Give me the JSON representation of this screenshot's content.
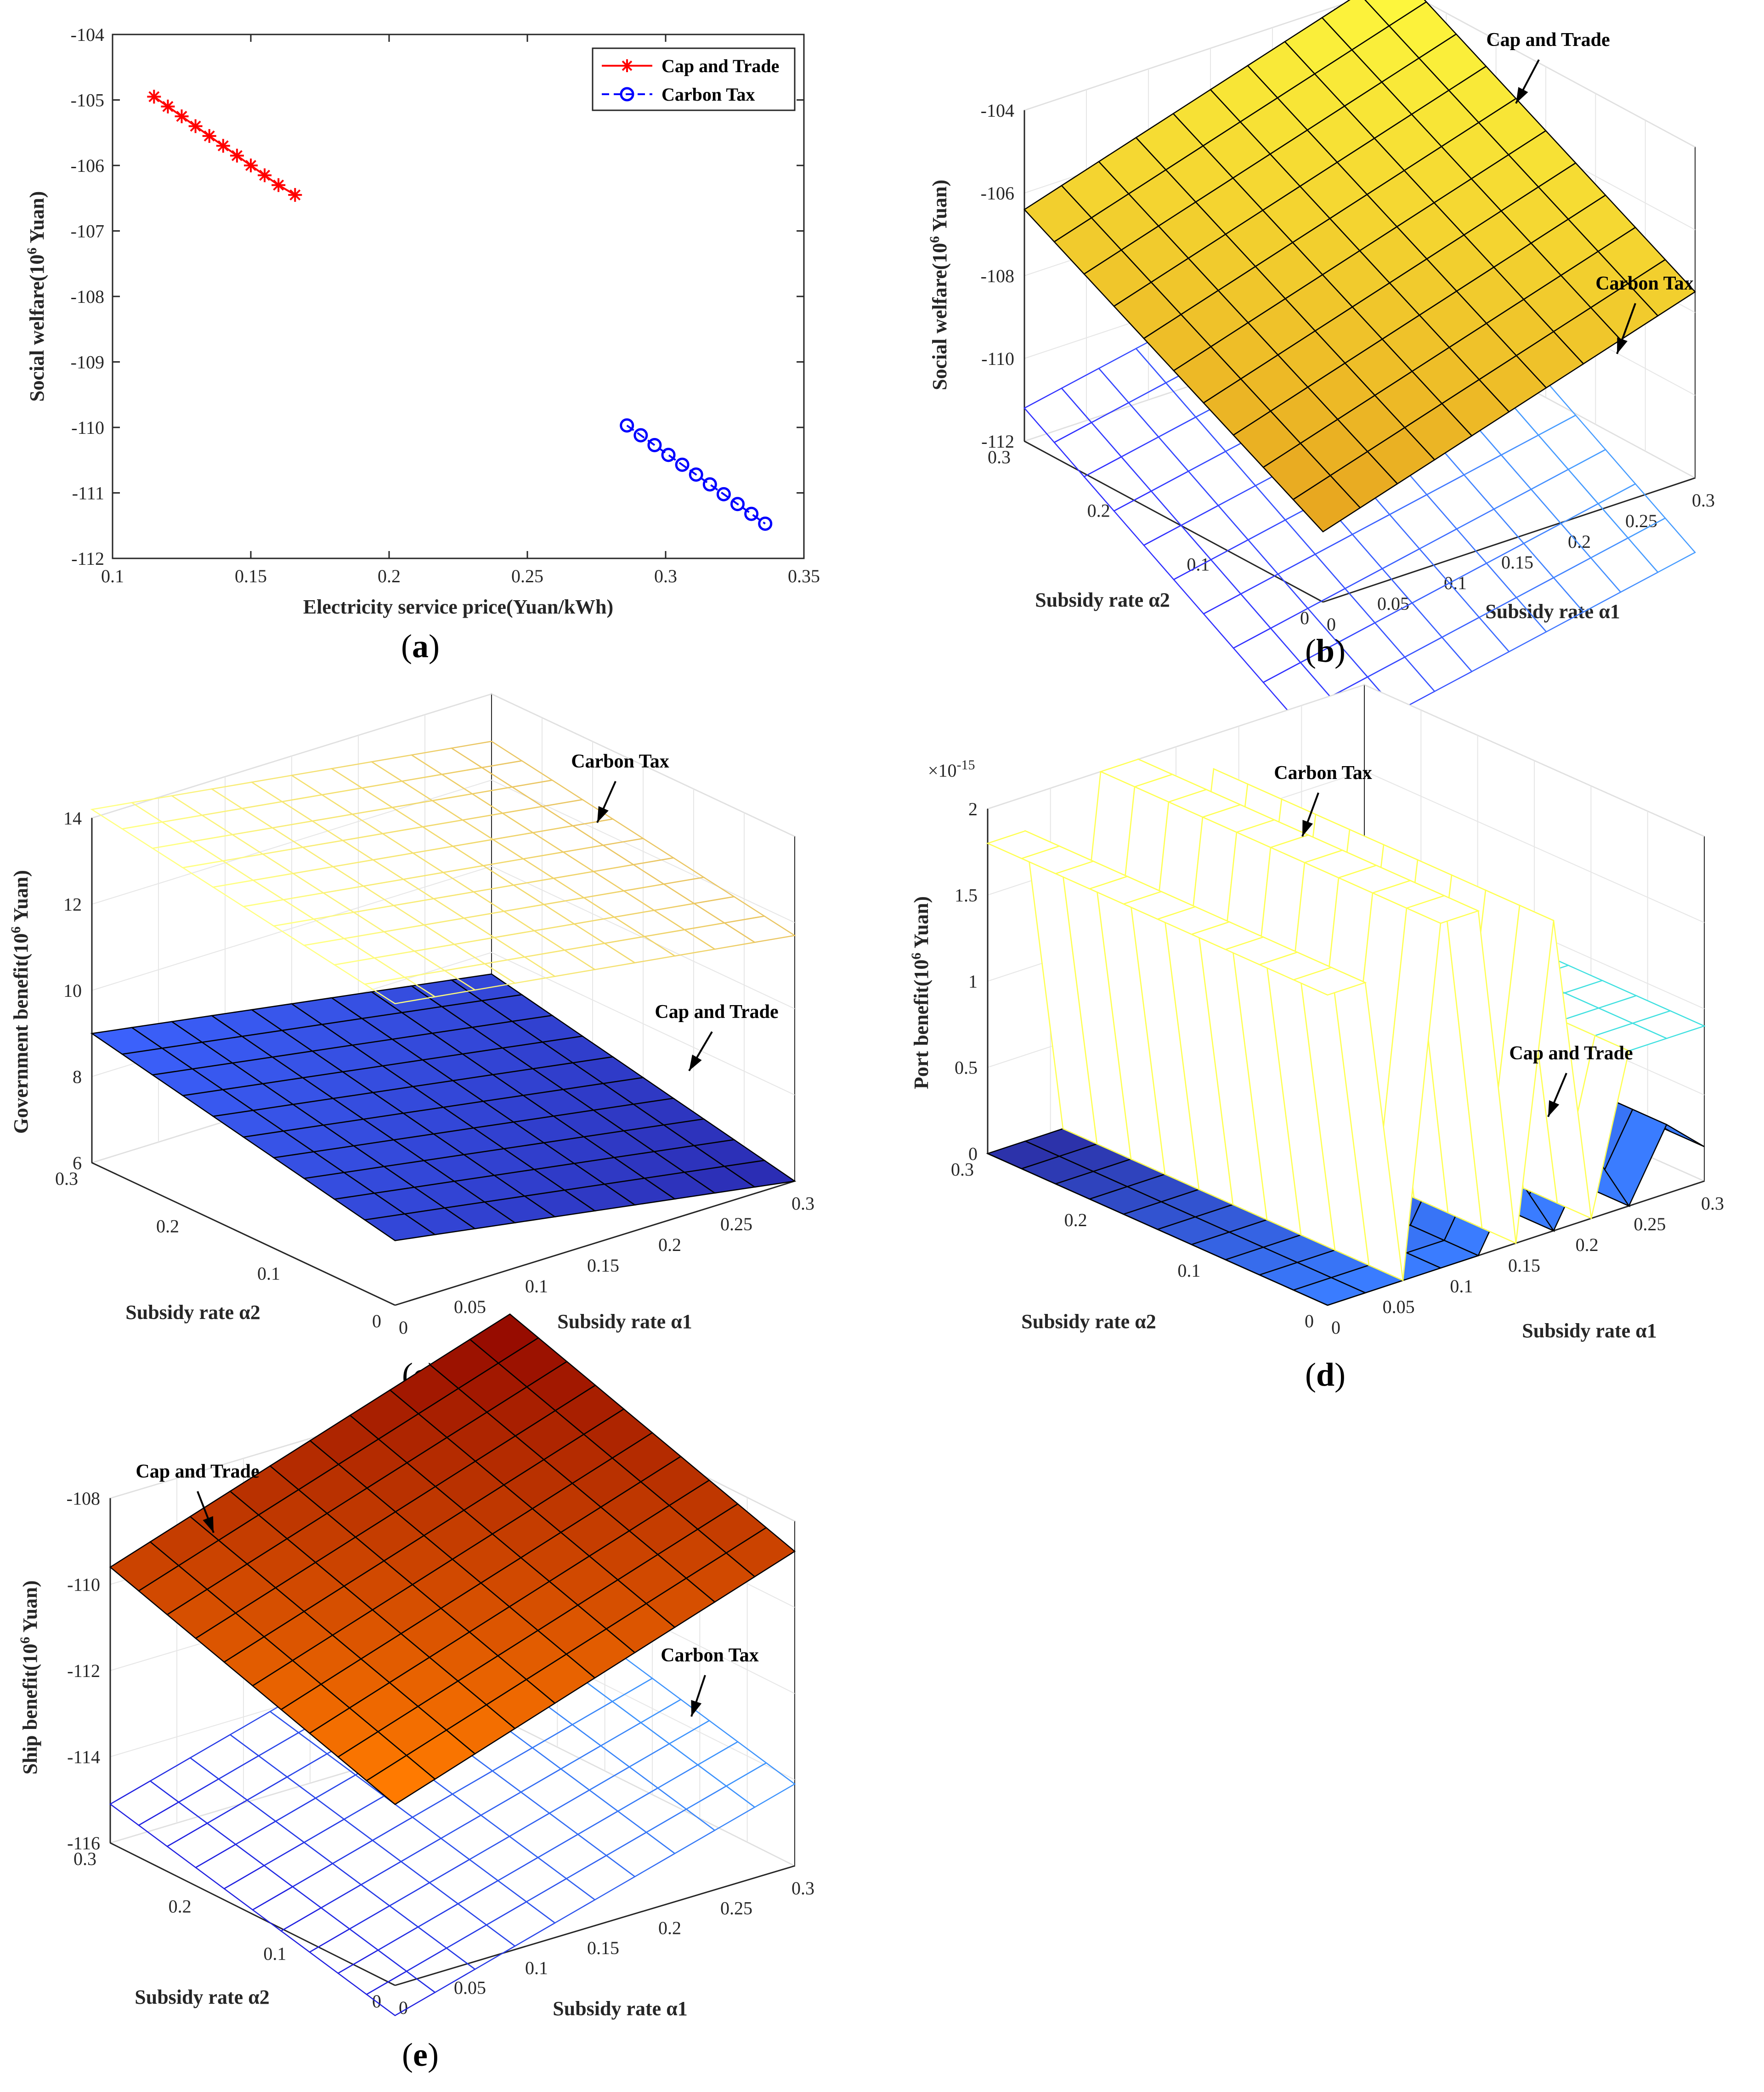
{
  "colors": {
    "cap_and_trade_2d": "#ff0000",
    "carbon_tax_2d": "#0000ff",
    "axis": "#262626",
    "grid": "#e6e6e6",
    "mesh_edge_solid": "#000000"
  },
  "chart_data": [
    {
      "id": "a",
      "type": "line",
      "caption": "a",
      "xlabel": "Electricity service price(Yuan/kWh)",
      "ylabel": "Social welfare(10",
      "ylabel_sup": "6",
      "ylabel_suffix": " Yuan)",
      "xlim": [
        0.1,
        0.35
      ],
      "ylim": [
        -112,
        -104
      ],
      "x_ticks": [
        "0.1",
        "0.15",
        "0.2",
        "0.25",
        "0.3",
        "0.35"
      ],
      "y_ticks": [
        "-112",
        "-111",
        "-110",
        "-109",
        "-108",
        "-107",
        "-106",
        "-105",
        "-104"
      ],
      "legend_position": "top-right",
      "series": [
        {
          "name": "Cap and Trade",
          "marker": "asterisk",
          "line": "solid",
          "x": [
            0.115,
            0.12,
            0.125,
            0.13,
            0.135,
            0.14,
            0.145,
            0.15,
            0.155,
            0.16,
            0.166
          ],
          "y": [
            -104.95,
            -105.1,
            -105.25,
            -105.4,
            -105.55,
            -105.7,
            -105.85,
            -106.0,
            -106.15,
            -106.3,
            -106.45
          ]
        },
        {
          "name": "Carbon Tax",
          "marker": "circle",
          "line": "dashed",
          "x": [
            0.286,
            0.291,
            0.296,
            0.301,
            0.306,
            0.311,
            0.316,
            0.321,
            0.326,
            0.331,
            0.336
          ],
          "y": [
            -109.97,
            -110.12,
            -110.27,
            -110.42,
            -110.57,
            -110.72,
            -110.87,
            -111.02,
            -111.17,
            -111.32,
            -111.47
          ]
        }
      ]
    },
    {
      "id": "b",
      "type": "surface",
      "caption": "b",
      "xlabel": "Subsidy rate α1",
      "ylabel": "Subsidy rate α2",
      "zlabel": "Social welfare(10",
      "zlabel_sup": "6",
      "zlabel_suffix": " Yuan)",
      "xlim": [
        0,
        0.3
      ],
      "ylim": [
        0,
        0.3
      ],
      "zlim": [
        -112,
        -104
      ],
      "x_ticks": [
        "0",
        "0.05",
        "0.1",
        "0.15",
        "0.2",
        "0.25",
        "0.3"
      ],
      "y_ticks": [
        "0",
        "0.1",
        "0.2",
        "0.3"
      ],
      "z_ticks": [
        "-112",
        "-110",
        "-108",
        "-106",
        "-104"
      ],
      "series": [
        {
          "name": "Cap and Trade",
          "style": "filled",
          "colormap": "autumn-yellow",
          "corners": {
            "a1_0_a2_0": -110.3,
            "a1_max_a2_0": -107.5,
            "a1_0_a2_max": -106.4,
            "a1_max_a2_max": -103.6
          }
        },
        {
          "name": "Carbon Tax",
          "style": "mesh",
          "colormap": "cool-blue",
          "corners": {
            "a1_0_a2_0": -115.6,
            "a1_max_a2_0": -113.8,
            "a1_0_a2_max": -111.2,
            "a1_max_a2_max": -109.4
          }
        }
      ],
      "annotations": [
        "Cap and Trade",
        "Carbon Tax"
      ]
    },
    {
      "id": "c",
      "type": "surface",
      "caption": "c",
      "xlabel": "Subsidy rate α1",
      "ylabel": "Subsidy rate α2",
      "zlabel": "Government benefit(10",
      "zlabel_sup": "6",
      "zlabel_suffix": " Yuan)",
      "xlim": [
        0,
        0.3
      ],
      "ylim": [
        0,
        0.3
      ],
      "zlim": [
        6,
        14
      ],
      "x_ticks": [
        "0",
        "0.05",
        "0.1",
        "0.15",
        "0.2",
        "0.25",
        "0.3"
      ],
      "y_ticks": [
        "0",
        "0.1",
        "0.2",
        "0.3"
      ],
      "z_ticks": [
        "6",
        "8",
        "10",
        "12",
        "14"
      ],
      "series": [
        {
          "name": "Cap and Trade",
          "style": "filled",
          "colormap": "blue",
          "corners": {
            "a1_0_a2_0": 7.5,
            "a1_max_a2_0": 6.0,
            "a1_0_a2_max": 9.0,
            "a1_max_a2_max": 7.5
          }
        },
        {
          "name": "Carbon Tax",
          "style": "mesh",
          "colormap": "pale-yellow",
          "corners": {
            "a1_0_a2_0": 13.0,
            "a1_max_a2_0": 11.7,
            "a1_0_a2_max": 14.2,
            "a1_max_a2_max": 12.9
          }
        }
      ],
      "annotations": [
        "Carbon Tax",
        "Cap and Trade"
      ]
    },
    {
      "id": "d",
      "type": "surface",
      "caption": "d",
      "xlabel": "Subsidy rate α1",
      "ylabel": "Subsidy rate α2",
      "zlabel": "Port benefit(10",
      "zlabel_sup": "6",
      "zlabel_suffix": " Yuan)",
      "z_exponent": "×10",
      "z_exponent_sup": "-15",
      "xlim": [
        0,
        0.3
      ],
      "ylim": [
        0,
        0.3
      ],
      "zlim": [
        0,
        2
      ],
      "x_ticks": [
        "0",
        "0.05",
        "0.1",
        "0.15",
        "0.2",
        "0.25",
        "0.3"
      ],
      "y_ticks": [
        "0",
        "0.1",
        "0.2",
        "0.3"
      ],
      "z_ticks": [
        "0",
        "0.5",
        "1",
        "1.5",
        "2"
      ],
      "series": [
        {
          "name": "Carbon Tax",
          "style": "mesh",
          "colormap": "yellow-cyan",
          "z_by_a1": [
            1.8,
            1.8,
            0.0,
            2.0,
            2.0,
            0.0,
            1.8,
            0.0,
            0.9,
            0.9,
            0.9
          ]
        },
        {
          "name": "Cap and Trade",
          "style": "filled",
          "colormap": "blue",
          "z_by_a1": [
            0.0,
            0.0,
            0.0,
            0.0,
            0.0,
            0.4,
            0.0,
            0.4,
            0.0,
            0.4,
            0.2
          ]
        }
      ],
      "annotations": [
        "Carbon Tax",
        "Cap and Trade"
      ]
    },
    {
      "id": "e",
      "type": "surface",
      "caption": "e",
      "xlabel": "Subsidy rate α1",
      "ylabel": "Subsidy rate α2",
      "zlabel": "Ship benefit(10",
      "zlabel_sup": "6",
      "zlabel_suffix": " Yuan)",
      "xlim": [
        0,
        0.3
      ],
      "ylim": [
        0,
        0.3
      ],
      "zlim": [
        -116,
        -108
      ],
      "x_ticks": [
        "0",
        "0.05",
        "0.1",
        "0.15",
        "0.2",
        "0.25",
        "0.3"
      ],
      "y_ticks": [
        "0",
        "0.1",
        "0.2",
        "0.3"
      ],
      "z_ticks": [
        "-116",
        "-114",
        "-112",
        "-110",
        "-108"
      ],
      "series": [
        {
          "name": "Cap and Trade",
          "style": "filled",
          "colormap": "hot-red",
          "corners": {
            "a1_0_a2_0": -111.8,
            "a1_max_a2_0": -108.7,
            "a1_0_a2_max": -109.6,
            "a1_max_a2_max": -106.5
          }
        },
        {
          "name": "Carbon Tax",
          "style": "mesh",
          "colormap": "blue",
          "corners": {
            "a1_0_a2_0": -116.7,
            "a1_max_a2_0": -114.1,
            "a1_0_a2_max": -115.1,
            "a1_max_a2_max": -112.5
          }
        }
      ],
      "annotations": [
        "Cap and Trade",
        "Carbon Tax"
      ]
    }
  ]
}
